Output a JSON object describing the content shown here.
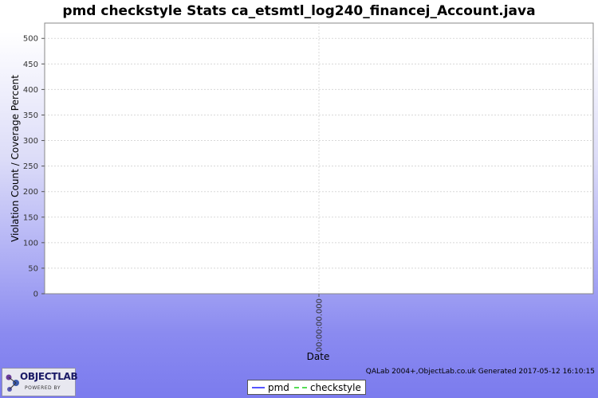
{
  "chart_data": {
    "type": "line",
    "title": "pmd checkstyle  Stats ca_etsmtl_log240_financej_Account.java",
    "xlabel": "Date",
    "ylabel": "Violation Count / Coverage Percent",
    "x_ticks": [
      "00:00:00.000"
    ],
    "y_ticks": [
      0,
      50,
      100,
      150,
      200,
      250,
      300,
      350,
      400,
      450,
      500
    ],
    "ylim": [
      0,
      530
    ],
    "grid": true,
    "legend_position": "bottom",
    "series": [
      {
        "name": "pmd",
        "values": [],
        "color": "#5555ff",
        "style": "solid"
      },
      {
        "name": "checkstyle",
        "values": [],
        "color": "#55dd55",
        "style": "dashed"
      }
    ]
  },
  "footer": {
    "credit": "QALab 2004+,ObjectLab.co.uk  Generated 2017-05-12 16:10:15",
    "logo_name": "OBJECTLAB",
    "logo_tagline": "POWERED BY"
  },
  "colors": {
    "background_top": "#ffffff",
    "background_bottom": "#7b7bee",
    "grid": "#d8d8d8"
  }
}
